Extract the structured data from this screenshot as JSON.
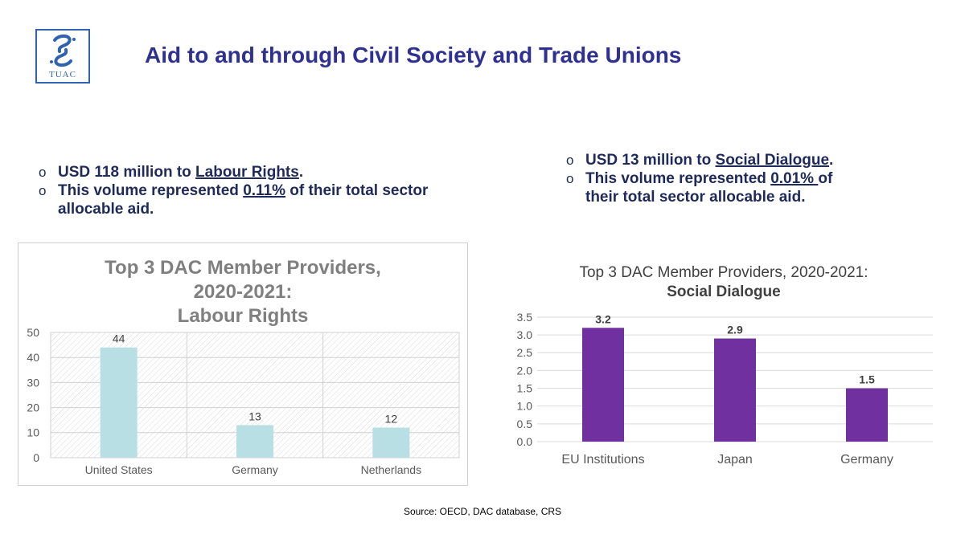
{
  "logo": {
    "text": "TUAC"
  },
  "title": "Aid to and through Civil Society and Trade Unions",
  "left_bullets": {
    "b1_prefix": "USD 118 million to ",
    "b1_link": "Labour Rights",
    "b1_suffix": ".",
    "b2_prefix": "This volume represented ",
    "b2_link": "0.11%",
    "b2_suffix": " of their total sector allocable aid."
  },
  "right_bullets": {
    "b1_prefix": "USD 13 million to ",
    "b1_link": "Social Dialogue",
    "b1_suffix": ".",
    "b2_prefix": "This volume represented ",
    "b2_link": "0.01% ",
    "b2_suffix": "of their total sector allocable aid."
  },
  "chart_data": [
    {
      "type": "bar",
      "title_lines": [
        "Top 3 DAC Member Providers,",
        "2020-2021:",
        "Labour Rights"
      ],
      "categories": [
        "United States",
        "Germany",
        "Netherlands"
      ],
      "values": [
        44,
        13,
        12
      ],
      "data_labels": [
        "44",
        "13",
        "12"
      ],
      "ylim": [
        0,
        50
      ],
      "yticks": [
        "0",
        "10",
        "20",
        "30",
        "40",
        "50"
      ],
      "bar_color": "#b8dfe3",
      "grid": true
    },
    {
      "type": "bar",
      "title": "Top 3 DAC Member Providers, 2020-2021:",
      "subtitle": "Social Dialogue",
      "categories": [
        "EU Institutions",
        "Japan",
        "Germany"
      ],
      "values": [
        3.2,
        2.9,
        1.5
      ],
      "data_labels": [
        "3.2",
        "2.9",
        "1.5"
      ],
      "ylim": [
        0,
        3.5
      ],
      "yticks": [
        "0.0",
        "0.5",
        "1.0",
        "1.5",
        "2.0",
        "2.5",
        "3.0",
        "3.5"
      ],
      "bar_color": "#7030a0",
      "grid": true
    }
  ],
  "source": "Source: OECD, DAC database, CRS"
}
